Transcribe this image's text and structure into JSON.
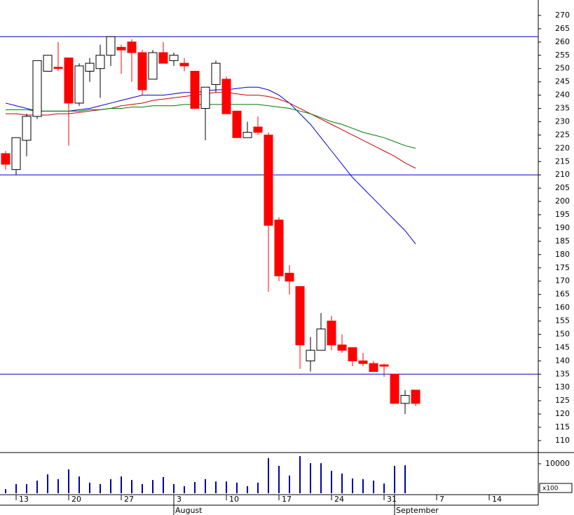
{
  "chart_data": {
    "type": "candlestick",
    "categories": [
      null,
      "13",
      null,
      null,
      null,
      null,
      "20",
      null,
      null,
      null,
      null,
      "27",
      null,
      null,
      null,
      null,
      "3",
      null,
      null,
      null,
      null,
      "10",
      null,
      null,
      null,
      null,
      "17",
      null,
      null,
      null,
      null,
      "24",
      null,
      null,
      null,
      null,
      "31",
      null,
      null,
      null,
      null,
      "7",
      null,
      null,
      null,
      null,
      "14",
      null,
      null,
      null,
      null
    ],
    "months": [
      {
        "value": 16,
        "label": "August"
      },
      {
        "value": 37,
        "label": "September"
      }
    ],
    "open": [
      218,
      212,
      223,
      232,
      249,
      250.5,
      254,
      237,
      249,
      250,
      255,
      258,
      260,
      256,
      246,
      256,
      253,
      252,
      249,
      235,
      244,
      246,
      234,
      224,
      228,
      225,
      193,
      173,
      168,
      140,
      144,
      155,
      146,
      145,
      140,
      139,
      138.5,
      135,
      124,
      129,
      null,
      null,
      null,
      null,
      null,
      null,
      null,
      null,
      null,
      null,
      null
    ],
    "high": [
      219,
      224,
      233,
      253,
      255,
      260,
      254,
      252,
      254,
      259,
      262,
      259,
      261,
      257,
      257,
      260,
      256,
      254,
      249,
      243,
      253,
      247,
      234,
      230,
      232,
      226,
      194,
      176,
      168,
      149,
      158,
      157,
      150,
      145,
      143,
      140,
      139,
      135,
      129,
      129,
      null,
      null,
      null,
      null,
      null,
      null,
      null,
      null,
      null,
      null,
      null
    ],
    "low": [
      212,
      210,
      217,
      231,
      249,
      249,
      221,
      236,
      245,
      239,
      251,
      248,
      245,
      240,
      246,
      252,
      251,
      249,
      235,
      223,
      241,
      233,
      224,
      224,
      225,
      166,
      170,
      165,
      137,
      136,
      144,
      144,
      143,
      138,
      138,
      136,
      134,
      124,
      120,
      123,
      null,
      null,
      null,
      null,
      null,
      null,
      null,
      null,
      null,
      null,
      null
    ],
    "close": [
      214,
      224,
      232,
      253,
      255,
      250,
      237,
      251,
      252,
      255,
      262,
      257,
      256,
      242,
      256,
      252,
      255,
      251,
      235,
      243,
      252,
      233,
      224,
      226,
      226,
      191,
      172,
      170,
      146,
      144,
      152,
      146,
      144,
      140,
      139,
      136,
      138,
      124,
      127,
      124,
      null,
      null,
      null,
      null,
      null,
      null,
      null,
      null,
      null,
      null,
      null
    ],
    "up_color": "#ffffff",
    "down_color": "#ff0000",
    "moving_averages": [
      {
        "color": "#0000cc",
        "values": [
          237,
          236,
          235,
          234,
          234,
          234,
          234,
          234.5,
          235,
          236,
          237,
          238,
          239,
          240,
          240,
          240,
          240.5,
          241,
          241,
          241.5,
          242,
          242,
          242.5,
          243,
          243,
          242,
          240,
          237,
          233,
          229,
          224,
          219,
          214,
          209,
          205,
          201,
          197,
          193,
          189,
          184,
          null,
          null,
          null,
          null,
          null,
          null,
          null,
          null,
          null,
          null,
          null
        ]
      },
      {
        "color": "#cc0000",
        "values": [
          233,
          233,
          232.5,
          232.5,
          232.5,
          233,
          233,
          233.5,
          234,
          234.5,
          235,
          236,
          236.5,
          237,
          238,
          238.5,
          239,
          239.5,
          240,
          240.5,
          241,
          241,
          240.5,
          240,
          240,
          239.5,
          238.5,
          237,
          235,
          233,
          231,
          229,
          227,
          225,
          223,
          221,
          219,
          217,
          214.5,
          212.5,
          null,
          null,
          null,
          null,
          null,
          null,
          null,
          null,
          null,
          null,
          null
        ]
      },
      {
        "color": "#007700",
        "values": [
          234.5,
          234.5,
          234.5,
          234,
          234,
          234,
          234,
          234,
          234.5,
          234.5,
          235,
          235,
          235.5,
          235.5,
          236,
          236,
          236,
          236.5,
          236.5,
          236.5,
          236.5,
          236.5,
          236.5,
          236.5,
          236.5,
          236,
          235.5,
          235,
          234,
          233,
          231.5,
          230,
          229,
          227.5,
          226,
          225,
          224,
          222.5,
          221,
          220,
          null,
          null,
          null,
          null,
          null,
          null,
          null,
          null,
          null,
          null,
          null
        ]
      }
    ],
    "hlines": [
      262,
      210,
      135
    ],
    "hline_color": "#0000cc",
    "ylim": [
      105.5,
      275.8
    ],
    "yticks": [
      110,
      115,
      120,
      125,
      130,
      135,
      140,
      145,
      150,
      155,
      160,
      165,
      170,
      175,
      180,
      185,
      190,
      195,
      200,
      205,
      210,
      215,
      220,
      225,
      230,
      235,
      240,
      245,
      250,
      255,
      260,
      265,
      270
    ],
    "volume": [
      1400,
      3100,
      3100,
      4300,
      6400,
      4800,
      8100,
      5700,
      3600,
      3100,
      4800,
      5700,
      4500,
      3100,
      4500,
      5500,
      3100,
      2400,
      3800,
      4800,
      4000,
      4000,
      3600,
      2400,
      3600,
      11900,
      9300,
      6000,
      12600,
      10200,
      10200,
      7600,
      6700,
      5000,
      4800,
      4300,
      3300,
      9300,
      9500,
      null,
      null,
      null,
      null,
      null,
      null,
      null,
      null,
      null,
      null,
      null,
      null
    ],
    "volume_color": "#0000aa",
    "volume_ylim": [
      0,
      13570
    ],
    "volume_yticks": [
      10000
    ],
    "volume_unit_label": "x100"
  }
}
